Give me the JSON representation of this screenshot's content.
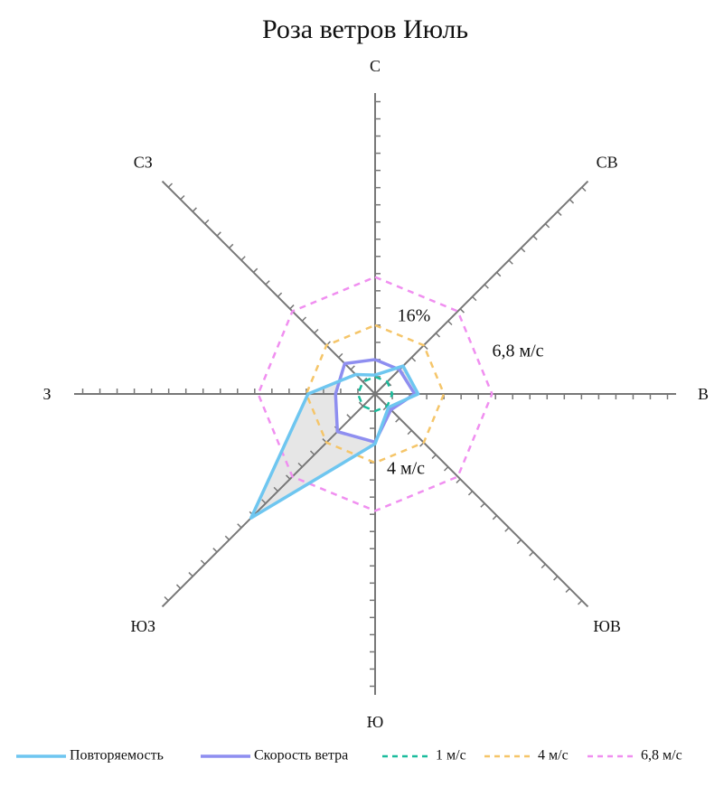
{
  "chart_data": {
    "type": "radar",
    "title": "Роза ветров Июль",
    "categories": [
      "С",
      "СВ",
      "В",
      "ЮВ",
      "Ю",
      "ЮЗ",
      "З",
      "СЗ"
    ],
    "rlim": [
      0,
      17.5
    ],
    "rticks": [
      1,
      2,
      3,
      4,
      5,
      6,
      7,
      8,
      9,
      10,
      11,
      12,
      13,
      14,
      15,
      16,
      17
    ],
    "series": [
      {
        "name": "Повторяемость",
        "color": "#6ec6f0",
        "dashed": false,
        "values": [
          1.1,
          2.3,
          2.5,
          1.1,
          2.9,
          10.2,
          3.9,
          1.6
        ]
      },
      {
        "name": "Скорость ветра",
        "color": "#8e8ef0",
        "dashed": false,
        "values": [
          2.0,
          2.0,
          2.3,
          1.3,
          2.8,
          3.1,
          2.3,
          2.5
        ]
      },
      {
        "name": "1 м/с",
        "color": "#1abc9c",
        "dashed": true,
        "values": [
          1,
          1,
          1,
          1,
          1,
          1,
          1,
          1
        ]
      },
      {
        "name": "4 м/с",
        "color": "#f5c569",
        "dashed": true,
        "values": [
          4,
          4,
          4,
          4,
          4,
          4,
          4,
          4
        ]
      },
      {
        "name": "6,8 м/с",
        "color": "#f08ff0",
        "dashed": true,
        "values": [
          6.8,
          6.8,
          6.8,
          6.8,
          6.8,
          6.8,
          6.8,
          6.8
        ]
      }
    ],
    "annotations": [
      "16%",
      "6,8 м/с",
      "4 м/с"
    ],
    "shade_color": "#e6e6e6",
    "axis_color": "#777777"
  }
}
